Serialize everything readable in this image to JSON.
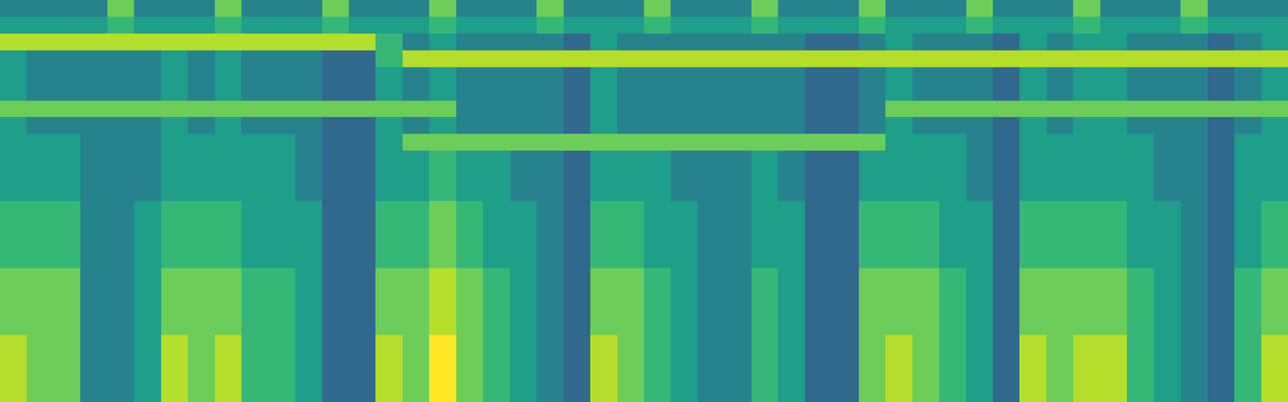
{
  "chart_data": {
    "type": "heatmap",
    "color": "Viridis",
    "tick_labels": false,
    "xlim": [
      -0.5,
      47.5
    ],
    "ylim": [
      23.5,
      -0.5
    ],
    "zlim": [
      0,
      9
    ],
    "cells": [
      [
        4,
        4,
        4,
        4,
        7,
        4,
        4,
        4,
        7,
        4,
        4,
        4,
        7,
        4,
        4,
        4,
        7,
        4,
        4,
        4,
        7,
        4,
        4,
        4,
        7,
        4,
        4,
        4,
        7,
        4,
        4,
        4,
        7,
        4,
        4,
        4,
        7,
        4,
        4,
        4,
        7,
        4,
        4,
        4,
        7,
        4,
        4,
        4
      ],
      [
        5,
        5,
        5,
        5,
        6,
        5,
        5,
        5,
        6,
        5,
        5,
        5,
        6,
        5,
        5,
        5,
        6,
        5,
        5,
        5,
        6,
        5,
        5,
        5,
        6,
        5,
        5,
        5,
        6,
        5,
        5,
        5,
        6,
        5,
        5,
        5,
        6,
        5,
        5,
        5,
        6,
        5,
        5,
        5,
        6,
        5,
        5,
        5
      ],
      [
        8,
        8,
        8,
        8,
        8,
        8,
        8,
        8,
        8,
        8,
        8,
        8,
        8,
        8,
        6,
        4,
        5,
        4,
        4,
        4,
        4,
        3,
        5,
        4,
        4,
        4,
        4,
        4,
        4,
        4,
        3,
        3,
        4,
        5,
        4,
        4,
        4,
        3,
        5,
        4,
        5,
        5,
        4,
        4,
        4,
        3,
        4,
        5
      ],
      [
        5,
        4,
        4,
        4,
        4,
        4,
        5,
        4,
        5,
        4,
        4,
        4,
        3,
        3,
        6,
        8,
        8,
        8,
        8,
        8,
        8,
        8,
        8,
        8,
        8,
        8,
        8,
        8,
        8,
        8,
        8,
        8,
        8,
        8,
        8,
        8,
        8,
        8,
        8,
        8,
        8,
        8,
        8,
        8,
        8,
        8,
        8,
        8
      ],
      [
        5,
        4,
        4,
        4,
        4,
        4,
        5,
        4,
        5,
        4,
        4,
        4,
        3,
        3,
        5,
        4,
        5,
        4,
        4,
        4,
        4,
        3,
        5,
        4,
        4,
        4,
        4,
        4,
        4,
        4,
        3,
        3,
        4,
        5,
        4,
        4,
        4,
        3,
        5,
        4,
        5,
        5,
        4,
        4,
        4,
        3,
        4,
        5
      ],
      [
        5,
        4,
        4,
        4,
        4,
        4,
        5,
        4,
        5,
        4,
        4,
        4,
        3,
        3,
        5,
        4,
        5,
        4,
        4,
        4,
        4,
        3,
        5,
        4,
        4,
        4,
        4,
        4,
        4,
        4,
        3,
        3,
        4,
        5,
        4,
        4,
        4,
        3,
        5,
        4,
        5,
        5,
        4,
        4,
        4,
        3,
        4,
        5
      ],
      [
        7,
        7,
        7,
        7,
        7,
        7,
        7,
        7,
        7,
        7,
        7,
        7,
        7,
        7,
        7,
        7,
        7,
        4,
        4,
        4,
        4,
        3,
        5,
        4,
        4,
        4,
        4,
        4,
        4,
        4,
        3,
        3,
        4,
        7,
        7,
        7,
        7,
        7,
        7,
        7,
        7,
        7,
        7,
        7,
        7,
        7,
        7,
        7
      ],
      [
        5,
        4,
        4,
        4,
        4,
        4,
        5,
        4,
        5,
        4,
        4,
        4,
        3,
        3,
        5,
        4,
        5,
        4,
        4,
        4,
        4,
        3,
        5,
        4,
        4,
        4,
        4,
        4,
        4,
        4,
        3,
        3,
        4,
        5,
        4,
        4,
        4,
        3,
        5,
        4,
        5,
        5,
        4,
        4,
        4,
        3,
        4,
        5
      ],
      [
        5,
        5,
        5,
        4,
        4,
        4,
        5,
        5,
        5,
        5,
        5,
        4,
        3,
        3,
        5,
        7,
        7,
        7,
        7,
        7,
        7,
        7,
        7,
        7,
        7,
        7,
        7,
        7,
        7,
        7,
        7,
        7,
        7,
        5,
        5,
        5,
        4,
        3,
        5,
        5,
        5,
        5,
        5,
        4,
        4,
        3,
        5,
        5
      ],
      [
        5,
        5,
        5,
        4,
        4,
        4,
        5,
        5,
        5,
        5,
        5,
        4,
        3,
        3,
        5,
        5,
        6,
        5,
        5,
        4,
        4,
        3,
        5,
        5,
        5,
        4,
        4,
        4,
        5,
        4,
        3,
        3,
        5,
        5,
        5,
        5,
        4,
        3,
        5,
        5,
        5,
        5,
        5,
        4,
        4,
        3,
        5,
        5
      ],
      [
        5,
        5,
        5,
        4,
        4,
        4,
        5,
        5,
        5,
        5,
        5,
        4,
        3,
        3,
        5,
        5,
        6,
        5,
        5,
        4,
        4,
        3,
        5,
        5,
        5,
        4,
        4,
        4,
        5,
        4,
        3,
        3,
        5,
        5,
        5,
        5,
        4,
        3,
        5,
        5,
        5,
        5,
        5,
        4,
        4,
        3,
        5,
        5
      ],
      [
        5,
        5,
        5,
        4,
        4,
        4,
        5,
        5,
        5,
        5,
        5,
        4,
        3,
        3,
        5,
        5,
        6,
        5,
        5,
        4,
        4,
        3,
        5,
        5,
        5,
        4,
        4,
        4,
        5,
        4,
        3,
        3,
        5,
        5,
        5,
        5,
        4,
        3,
        5,
        5,
        5,
        5,
        5,
        4,
        4,
        3,
        5,
        5
      ],
      [
        6,
        6,
        6,
        4,
        4,
        5,
        6,
        6,
        6,
        5,
        5,
        5,
        3,
        3,
        6,
        6,
        7,
        6,
        5,
        5,
        4,
        3,
        6,
        6,
        5,
        5,
        4,
        4,
        5,
        5,
        3,
        3,
        6,
        6,
        6,
        5,
        5,
        3,
        6,
        6,
        6,
        6,
        5,
        5,
        4,
        3,
        5,
        6
      ],
      [
        6,
        6,
        6,
        4,
        4,
        5,
        6,
        6,
        6,
        5,
        5,
        5,
        3,
        3,
        6,
        6,
        7,
        6,
        5,
        5,
        4,
        3,
        6,
        6,
        5,
        5,
        4,
        4,
        5,
        5,
        3,
        3,
        6,
        6,
        6,
        5,
        5,
        3,
        6,
        6,
        6,
        6,
        5,
        5,
        4,
        3,
        5,
        6
      ],
      [
        6,
        6,
        6,
        4,
        4,
        5,
        6,
        6,
        6,
        5,
        5,
        5,
        3,
        3,
        6,
        6,
        7,
        6,
        5,
        5,
        4,
        3,
        6,
        6,
        5,
        5,
        4,
        4,
        5,
        5,
        3,
        3,
        6,
        6,
        6,
        5,
        5,
        3,
        6,
        6,
        6,
        6,
        5,
        5,
        4,
        3,
        5,
        6
      ],
      [
        6,
        6,
        6,
        4,
        4,
        5,
        6,
        6,
        6,
        5,
        5,
        5,
        3,
        3,
        6,
        6,
        7,
        6,
        5,
        5,
        4,
        3,
        6,
        6,
        5,
        5,
        4,
        4,
        5,
        5,
        3,
        3,
        6,
        6,
        6,
        5,
        5,
        3,
        6,
        6,
        6,
        6,
        5,
        5,
        4,
        3,
        5,
        6
      ],
      [
        7,
        7,
        7,
        4,
        4,
        5,
        7,
        7,
        7,
        6,
        6,
        5,
        3,
        3,
        7,
        7,
        8,
        7,
        6,
        5,
        4,
        3,
        7,
        7,
        6,
        5,
        4,
        4,
        6,
        5,
        3,
        3,
        7,
        7,
        7,
        6,
        5,
        3,
        7,
        7,
        7,
        7,
        6,
        5,
        4,
        3,
        6,
        7
      ],
      [
        7,
        7,
        7,
        4,
        4,
        5,
        7,
        7,
        7,
        6,
        6,
        5,
        3,
        3,
        7,
        7,
        8,
        7,
        6,
        5,
        4,
        3,
        7,
        7,
        6,
        5,
        4,
        4,
        6,
        5,
        3,
        3,
        7,
        7,
        7,
        6,
        5,
        3,
        7,
        7,
        7,
        7,
        6,
        5,
        4,
        3,
        6,
        7
      ],
      [
        7,
        7,
        7,
        4,
        4,
        5,
        7,
        7,
        7,
        6,
        6,
        5,
        3,
        3,
        7,
        7,
        8,
        7,
        6,
        5,
        4,
        3,
        7,
        7,
        6,
        5,
        4,
        4,
        6,
        5,
        3,
        3,
        7,
        7,
        7,
        6,
        5,
        3,
        7,
        7,
        7,
        7,
        6,
        5,
        4,
        3,
        6,
        7
      ],
      [
        7,
        7,
        7,
        4,
        4,
        5,
        7,
        7,
        7,
        6,
        6,
        5,
        3,
        3,
        7,
        7,
        8,
        7,
        6,
        5,
        4,
        3,
        7,
        7,
        6,
        5,
        4,
        4,
        6,
        5,
        3,
        3,
        7,
        7,
        7,
        6,
        5,
        3,
        7,
        7,
        7,
        7,
        6,
        5,
        4,
        3,
        6,
        7
      ],
      [
        8,
        7,
        7,
        4,
        4,
        5,
        8,
        7,
        8,
        6,
        6,
        5,
        3,
        3,
        8,
        7,
        9,
        7,
        6,
        5,
        4,
        3,
        8,
        7,
        6,
        5,
        4,
        4,
        6,
        5,
        3,
        3,
        7,
        8,
        7,
        6,
        5,
        3,
        8,
        7,
        8,
        8,
        6,
        5,
        4,
        3,
        6,
        8
      ],
      [
        8,
        7,
        7,
        4,
        4,
        5,
        8,
        7,
        8,
        6,
        6,
        5,
        3,
        3,
        8,
        7,
        9,
        7,
        6,
        5,
        4,
        3,
        8,
        7,
        6,
        5,
        4,
        4,
        6,
        5,
        3,
        3,
        7,
        8,
        7,
        6,
        5,
        3,
        8,
        7,
        8,
        8,
        6,
        5,
        4,
        3,
        6,
        8
      ],
      [
        8,
        7,
        7,
        4,
        4,
        5,
        8,
        7,
        8,
        6,
        6,
        5,
        3,
        3,
        8,
        7,
        9,
        7,
        6,
        5,
        4,
        3,
        8,
        7,
        6,
        5,
        4,
        4,
        6,
        5,
        3,
        3,
        7,
        8,
        7,
        6,
        5,
        3,
        8,
        7,
        8,
        8,
        6,
        5,
        4,
        3,
        6,
        8
      ],
      [
        8,
        7,
        7,
        4,
        4,
        5,
        8,
        7,
        8,
        6,
        6,
        5,
        3,
        3,
        8,
        7,
        9,
        7,
        6,
        5,
        4,
        3,
        8,
        7,
        6,
        5,
        4,
        4,
        6,
        5,
        3,
        3,
        7,
        8,
        7,
        6,
        5,
        3,
        8,
        7,
        8,
        8,
        6,
        5,
        4,
        3,
        6,
        8
      ]
    ]
  }
}
